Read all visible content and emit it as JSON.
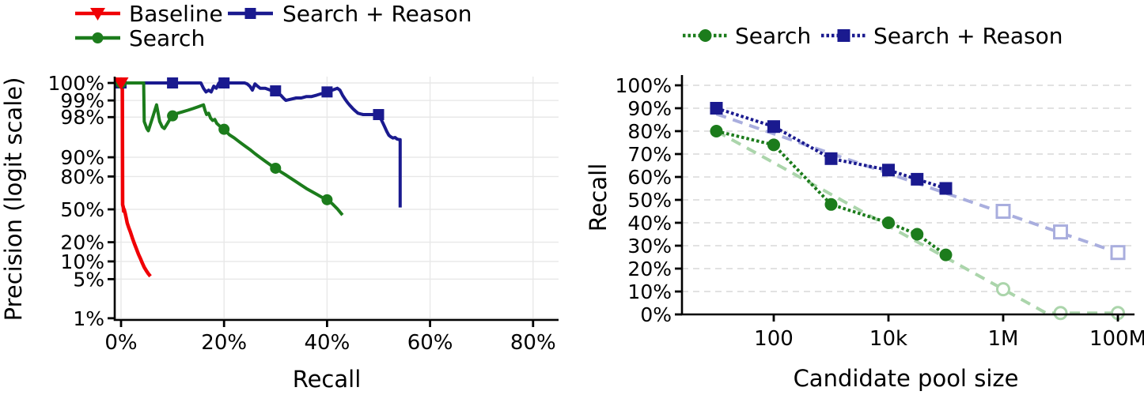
{
  "figure": {
    "background": "#ffffff",
    "colors": {
      "baseline_red": "#f00005",
      "search_green": "#1c7c1c",
      "reason_navy": "#1a1a8f",
      "trend_green_pale": "#abd5ab",
      "trend_blue_pale": "#a9aede",
      "grid_left": "#e8e8e8",
      "grid_right": "#dedede",
      "axis_black": "#000000"
    }
  },
  "chart_data": [
    {
      "type": "line",
      "title": "",
      "xlabel": "Recall",
      "ylabel": "Precision (logit scale)",
      "x_scale": "linear",
      "y_scale": "logit",
      "xlim": [
        0,
        85
      ],
      "x_tick_labels": [
        "0%",
        "20%",
        "40%",
        "60%",
        "80%"
      ],
      "x_tick_values": [
        0,
        20,
        40,
        60,
        80
      ],
      "y_tick_labels": [
        "1%",
        "5%",
        "10%",
        "20%",
        "50%",
        "80%",
        "90%",
        "98%",
        "99%",
        "100%"
      ],
      "y_tick_values": [
        1,
        5,
        10,
        20,
        50,
        80,
        90,
        98,
        99,
        100
      ],
      "grid": "solid",
      "legend_position": "top-left",
      "legend": [
        {
          "label": "Baseline",
          "color": "#f00005",
          "marker": "triangle-down",
          "line": "solid"
        },
        {
          "label": "Search",
          "color": "#1c7c1c",
          "marker": "circle",
          "line": "solid"
        },
        {
          "label": "Search + Reason",
          "color": "#1a1a8f",
          "marker": "square",
          "line": "solid"
        }
      ],
      "series": [
        {
          "name": "Search + Reason",
          "color": "#1a1a8f",
          "marker": "square",
          "line": "solid",
          "points": [
            [
              0,
              100
            ],
            [
              2,
              100
            ],
            [
              4,
              100
            ],
            [
              6,
              100
            ],
            [
              8,
              100
            ],
            [
              10,
              100
            ],
            [
              12,
              100
            ],
            [
              14,
              100
            ],
            [
              15,
              100
            ],
            [
              15.5,
              99.6
            ],
            [
              16,
              99.4
            ],
            [
              16.5,
              99.3
            ],
            [
              17,
              99.35
            ],
            [
              17.5,
              99.3
            ],
            [
              18,
              99.45
            ],
            [
              18.5,
              99.4
            ],
            [
              19,
              99.8
            ],
            [
              19.5,
              99.9
            ],
            [
              20,
              99.9
            ],
            [
              21,
              99.85
            ],
            [
              22,
              99.8
            ],
            [
              23,
              99.75
            ],
            [
              24,
              99.7
            ],
            [
              24.5,
              99.5
            ],
            [
              25,
              99.45
            ],
            [
              25.5,
              99.35
            ],
            [
              26,
              99.5
            ],
            [
              26.5,
              99.45
            ],
            [
              27,
              99.4
            ],
            [
              28,
              99.4
            ],
            [
              29,
              99.35
            ],
            [
              30,
              99.33
            ],
            [
              30.5,
              99.25
            ],
            [
              31,
              99.2
            ],
            [
              31.5,
              99.1
            ],
            [
              32,
              99.0
            ],
            [
              33,
              99.05
            ],
            [
              34,
              99.1
            ],
            [
              35,
              99.1
            ],
            [
              36,
              99.15
            ],
            [
              37,
              99.15
            ],
            [
              38,
              99.2
            ],
            [
              39,
              99.25
            ],
            [
              40,
              99.3
            ],
            [
              40.5,
              99.3
            ],
            [
              41,
              99.35
            ],
            [
              42,
              99.4
            ],
            [
              42.5,
              99.35
            ],
            [
              43,
              99.2
            ],
            [
              43.5,
              99.05
            ],
            [
              44,
              98.9
            ],
            [
              44.5,
              98.75
            ],
            [
              45,
              98.6
            ],
            [
              45.5,
              98.45
            ],
            [
              46,
              98.3
            ],
            [
              46.5,
              98.25
            ],
            [
              47,
              98.2
            ],
            [
              48,
              98.2
            ],
            [
              49,
              98.2
            ],
            [
              50,
              98.2
            ],
            [
              50.4,
              97.9
            ],
            [
              50.8,
              97.5
            ],
            [
              51.2,
              97.0
            ],
            [
              51.6,
              96.4
            ],
            [
              52,
              95.8
            ],
            [
              52.4,
              95.5
            ],
            [
              52.8,
              95.3
            ],
            [
              53.2,
              95.4
            ],
            [
              53.6,
              95.1
            ],
            [
              54,
              95.0
            ],
            [
              54.2,
              95.0
            ],
            [
              54.2,
              52
            ]
          ],
          "marker_points": [
            [
              0,
              100
            ],
            [
              10,
              100
            ],
            [
              20,
              99.9
            ],
            [
              30,
              99.33
            ],
            [
              40,
              99.3
            ],
            [
              50,
              98.2
            ]
          ]
        },
        {
          "name": "Search",
          "color": "#1c7c1c",
          "marker": "circle",
          "line": "solid",
          "points": [
            [
              0,
              100
            ],
            [
              1,
              100
            ],
            [
              2,
              100
            ],
            [
              3,
              100
            ],
            [
              4,
              100
            ],
            [
              4.4,
              100
            ],
            [
              4.5,
              97.6
            ],
            [
              5,
              96.8
            ],
            [
              5.3,
              96.5
            ],
            [
              6,
              97.8
            ],
            [
              6.9,
              98.8
            ],
            [
              7.5,
              97.6
            ],
            [
              8,
              97.0
            ],
            [
              8.4,
              96.8
            ],
            [
              9,
              97.4
            ],
            [
              9.6,
              97.9
            ],
            [
              10,
              98.1
            ],
            [
              11,
              98.3
            ],
            [
              12,
              98.4
            ],
            [
              13,
              98.5
            ],
            [
              14,
              98.6
            ],
            [
              15,
              98.7
            ],
            [
              16,
              98.8
            ],
            [
              16.3,
              98.5
            ],
            [
              16.6,
              98.2
            ],
            [
              17,
              98.3
            ],
            [
              17.4,
              97.9
            ],
            [
              17.8,
              97.7
            ],
            [
              18.2,
              97.8
            ],
            [
              18.6,
              97.4
            ],
            [
              19,
              97.2
            ],
            [
              19.5,
              96.9
            ],
            [
              20,
              96.7
            ],
            [
              21,
              95.9
            ],
            [
              22,
              95.3
            ],
            [
              23,
              94.5
            ],
            [
              24,
              93.6
            ],
            [
              25,
              92.6
            ],
            [
              26,
              91.3
            ],
            [
              27,
              89.9
            ],
            [
              28,
              88.4
            ],
            [
              29,
              86.7
            ],
            [
              30,
              85
            ],
            [
              31,
              83
            ],
            [
              32,
              81
            ],
            [
              33,
              78.7
            ],
            [
              34,
              76.2
            ],
            [
              35,
              73.5
            ],
            [
              36,
              70.6
            ],
            [
              37,
              68
            ],
            [
              38,
              65.3
            ],
            [
              39,
              62.5
            ],
            [
              40,
              60
            ],
            [
              41,
              56
            ],
            [
              42,
              50.5
            ],
            [
              43,
              44
            ]
          ],
          "marker_points": [
            [
              0,
              100
            ],
            [
              10,
              98.1
            ],
            [
              20,
              96.7
            ],
            [
              30,
              85
            ],
            [
              40,
              60
            ]
          ]
        },
        {
          "name": "Baseline",
          "color": "#f00005",
          "marker": "triangle-down",
          "line": "solid",
          "points": [
            [
              0,
              100
            ],
            [
              0.25,
              100
            ],
            [
              0.3,
              55
            ],
            [
              0.45,
              52
            ],
            [
              0.5,
              48
            ],
            [
              0.6,
              50
            ],
            [
              0.8,
              46
            ],
            [
              1.0,
              41
            ],
            [
              1.2,
              36
            ],
            [
              1.5,
              31.5
            ],
            [
              1.8,
              28
            ],
            [
              2.2,
              23
            ],
            [
              2.6,
              19
            ],
            [
              3.0,
              15.8
            ],
            [
              3.4,
              13
            ],
            [
              3.8,
              11
            ],
            [
              4.1,
              9.5
            ],
            [
              4.5,
              8
            ],
            [
              4.9,
              7
            ],
            [
              5.3,
              6.2
            ],
            [
              5.7,
              5.6
            ]
          ],
          "marker_points": [
            [
              0,
              100
            ]
          ]
        }
      ]
    },
    {
      "type": "line",
      "title": "",
      "xlabel": "Candidate pool size",
      "ylabel": "Recall",
      "x_scale": "log",
      "y_scale": "linear",
      "ylim": [
        0,
        100
      ],
      "x_tick_labels": [
        "100",
        "10k",
        "1M",
        "100M"
      ],
      "x_tick_values": [
        100,
        10000,
        1000000,
        100000000
      ],
      "y_tick_labels": [
        "0%",
        "10%",
        "20%",
        "30%",
        "40%",
        "50%",
        "60%",
        "70%",
        "80%",
        "90%",
        "100%"
      ],
      "y_tick_values": [
        0,
        10,
        20,
        30,
        40,
        50,
        60,
        70,
        80,
        90,
        100
      ],
      "grid": "dashed-horizontal",
      "legend_position": "top",
      "legend": [
        {
          "label": "Search",
          "color": "#1c7c1c",
          "marker": "circle",
          "line": "densely-dashed"
        },
        {
          "label": "Search + Reason",
          "color": "#1a1a8f",
          "marker": "square",
          "line": "densely-dashed"
        }
      ],
      "series": [
        {
          "name": "Search + Reason trend",
          "color": "#a9aede",
          "marker": "square-open",
          "line": "dashed",
          "points": [
            [
              10,
              87.5
            ],
            [
              100000000,
              27
            ]
          ],
          "marker_points": [
            [
              1000000,
              45
            ],
            [
              10000000,
              36
            ],
            [
              100000000,
              27
            ]
          ]
        },
        {
          "name": "Search trend",
          "color": "#abd5ab",
          "marker": "circle-open",
          "line": "dashed",
          "points": [
            [
              10,
              80
            ],
            [
              1000000,
              11
            ],
            [
              5600000,
              0.6
            ],
            [
              100000000,
              0.6
            ]
          ],
          "marker_points": [
            [
              1000000,
              11
            ],
            [
              10000000,
              0.6
            ],
            [
              100000000,
              0.6
            ]
          ]
        },
        {
          "name": "Search + Reason",
          "color": "#1a1a8f",
          "marker": "square",
          "line": "densely-dashed",
          "points": [
            [
              10,
              90
            ],
            [
              100,
              82
            ],
            [
              1000,
              68
            ],
            [
              10000,
              63
            ],
            [
              31623,
              59
            ],
            [
              100000,
              55
            ]
          ],
          "marker_points": [
            [
              10,
              90
            ],
            [
              100,
              82
            ],
            [
              1000,
              68
            ],
            [
              10000,
              63
            ],
            [
              31623,
              59
            ],
            [
              100000,
              55
            ]
          ]
        },
        {
          "name": "Search",
          "color": "#1c7c1c",
          "marker": "circle",
          "line": "densely-dashed",
          "points": [
            [
              10,
              80
            ],
            [
              100,
              74
            ],
            [
              1000,
              48
            ],
            [
              10000,
              40
            ],
            [
              31623,
              35
            ],
            [
              100000,
              26
            ]
          ],
          "marker_points": [
            [
              10,
              80
            ],
            [
              100,
              74
            ],
            [
              1000,
              48
            ],
            [
              10000,
              40
            ],
            [
              31623,
              35
            ],
            [
              100000,
              26
            ]
          ]
        }
      ]
    }
  ]
}
